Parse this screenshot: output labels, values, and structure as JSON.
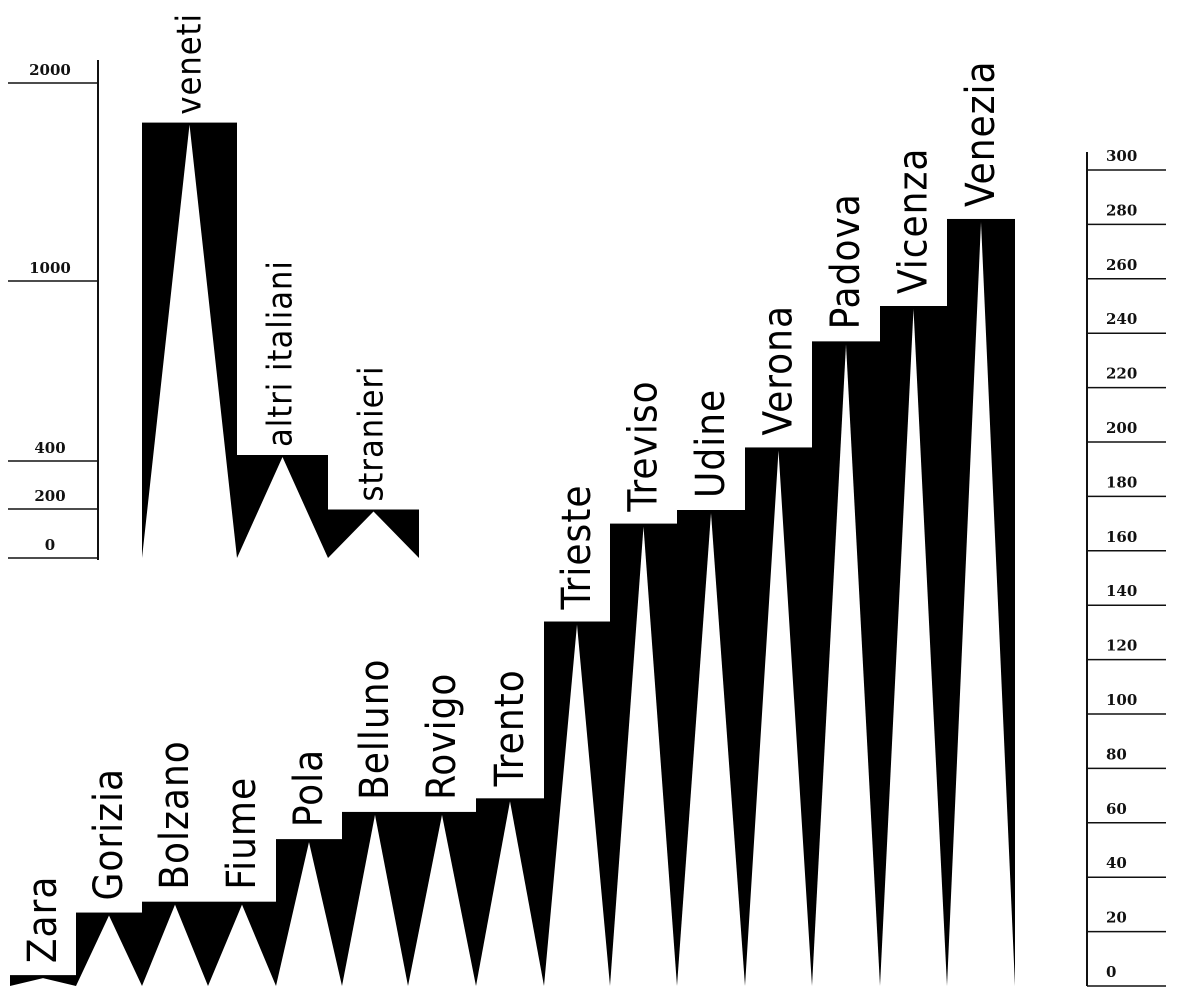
{
  "chart_data": [
    {
      "type": "bar",
      "categories": [
        "veneti",
        "altri italiani",
        "stranieri"
      ],
      "values": [
        1800,
        420,
        200
      ],
      "y_ticks": [
        "0",
        "200",
        "400",
        "1000",
        "2000"
      ],
      "colors": {
        "bar": "#000000",
        "triangle": "#ffffff",
        "axis": "#111111"
      }
    },
    {
      "type": "bar",
      "categories": [
        "Zara",
        "Gorizia",
        "Bolzano",
        "Fiume",
        "Pola",
        "Belluno",
        "Rovigo",
        "Trento",
        "Trieste",
        "Treviso",
        "Udine",
        "Verona",
        "Padova",
        "Vicenza",
        "Venezia"
      ],
      "values": [
        4,
        27,
        31,
        31,
        54,
        64,
        64,
        69,
        134,
        170,
        175,
        198,
        237,
        250,
        282
      ],
      "ylim": [
        0,
        300
      ],
      "y_ticks": [
        "0",
        "20",
        "40",
        "60",
        "80",
        "100",
        "120",
        "140",
        "160",
        "180",
        "200",
        "220",
        "240",
        "260",
        "280",
        "300"
      ],
      "colors": {
        "bar": "#000000",
        "triangle": "#ffffff",
        "axis": "#111111"
      }
    }
  ]
}
